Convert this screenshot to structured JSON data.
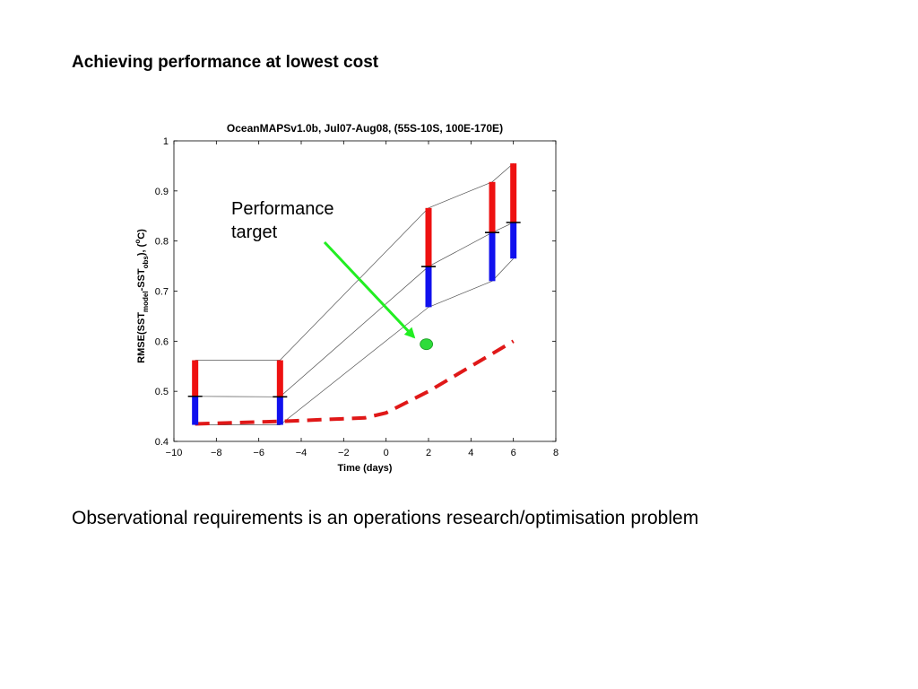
{
  "slide": {
    "title": "Achieving performance at lowest cost",
    "footer": "Observational requirements is an operations research/optimisation problem"
  },
  "chart_data": {
    "type": "line",
    "title": "OceanMAPSv1.0b, Jul07-Aug08, (55S-10S, 100E-170E)",
    "xlabel": "Time (days)",
    "ylabel_parts": [
      "RMSE(SST",
      "model",
      "-SST",
      "obs",
      "), (",
      "o",
      "C)"
    ],
    "xlim": [
      -10,
      8
    ],
    "ylim": [
      0.4,
      1
    ],
    "xticks": [
      -10,
      -8,
      -6,
      -4,
      -2,
      0,
      2,
      4,
      6,
      8
    ],
    "xtick_labels": [
      "−10",
      "−8",
      "−6",
      "−4",
      "−2",
      "0",
      "2",
      "4",
      "6",
      "8"
    ],
    "yticks": [
      0.4,
      0.5,
      0.6,
      0.7,
      0.8,
      0.9,
      1
    ],
    "ytick_labels": [
      "0.4",
      "0.5",
      "0.6",
      "0.7",
      "0.8",
      "0.9",
      "1"
    ],
    "ranges": [
      {
        "x": -9,
        "low": 0.433,
        "mid": 0.49,
        "high": 0.562
      },
      {
        "x": -5,
        "low": 0.433,
        "mid": 0.489,
        "high": 0.562
      },
      {
        "x": 2,
        "low": 0.668,
        "mid": 0.749,
        "high": 0.866
      },
      {
        "x": 5,
        "low": 0.72,
        "mid": 0.817,
        "high": 0.918
      },
      {
        "x": 6,
        "low": 0.765,
        "mid": 0.837,
        "high": 0.955
      }
    ],
    "target_line": {
      "x": [
        -9,
        -5,
        -1,
        0,
        2,
        4,
        6
      ],
      "y": [
        0.435,
        0.44,
        0.447,
        0.457,
        0.5,
        0.55,
        0.6
      ]
    },
    "annotation": {
      "lines": [
        "Performance",
        "target"
      ],
      "point": {
        "x": 1.9,
        "y": 0.594
      }
    },
    "colors": {
      "upper_bar": "#ee1111",
      "lower_bar": "#1111ee",
      "target_line": "#e01818",
      "arrow": "#22ee22",
      "target_point": "#2edc3a",
      "envelope": "#555555"
    },
    "grid": false
  }
}
